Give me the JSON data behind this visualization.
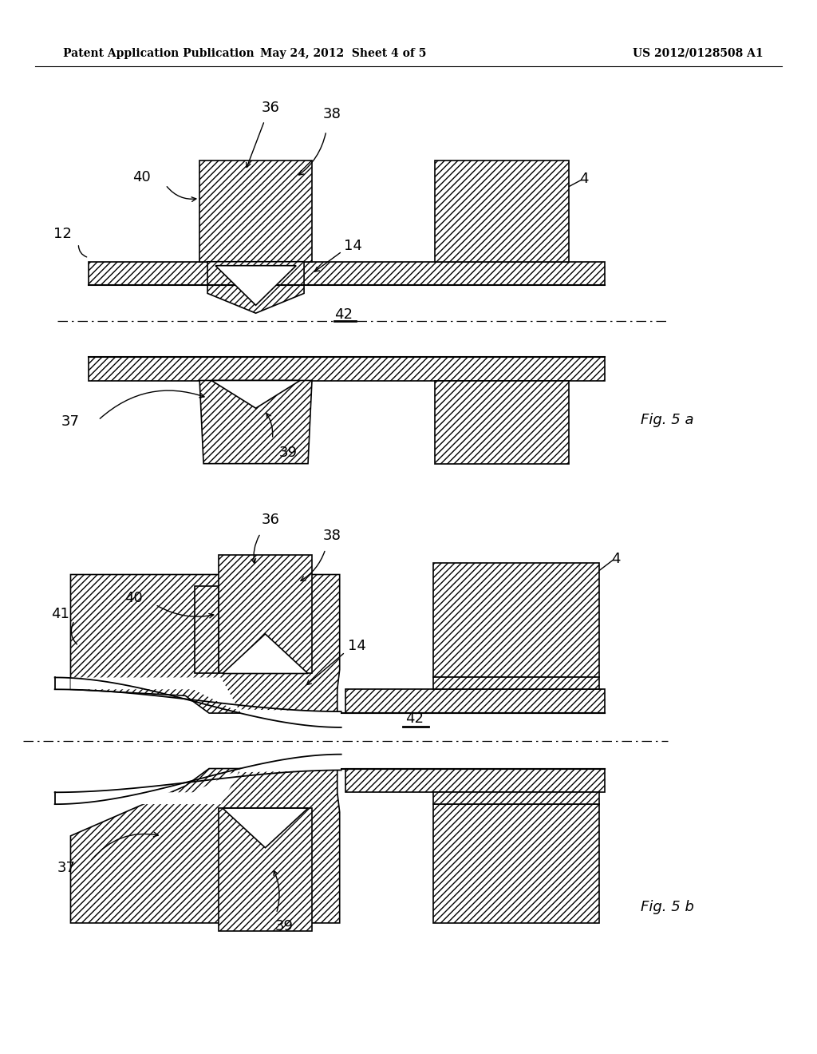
{
  "header_left": "Patent Application Publication",
  "header_mid": "May 24, 2012  Sheet 4 of 5",
  "header_right": "US 2012/0128508 A1",
  "fig_a_label": "Fig. 5 a",
  "fig_b_label": "Fig. 5 b",
  "bg": "#ffffff"
}
